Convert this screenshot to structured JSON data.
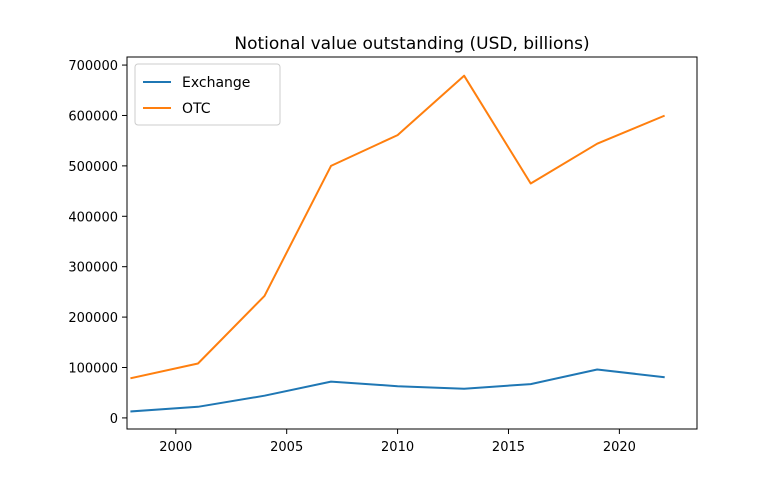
{
  "chart_data": {
    "type": "line",
    "title": "Notional value outstanding (USD, billions)",
    "xlabel": "",
    "ylabel": "",
    "x": [
      1998,
      2001,
      2004,
      2007,
      2010,
      2013,
      2016,
      2019,
      2022
    ],
    "series": [
      {
        "name": "Exchange",
        "color": "#1f77b4",
        "values": [
          13000,
          22000,
          44000,
          72000,
          63000,
          58000,
          67000,
          96000,
          81000
        ]
      },
      {
        "name": "OTC",
        "color": "#ff7f0e",
        "values": [
          79000,
          108000,
          242000,
          500000,
          561000,
          679000,
          465000,
          544000,
          599000
        ]
      }
    ],
    "xlim": [
      1997.8,
      2023.5
    ],
    "ylim": [
      -22000,
      716000
    ],
    "xticks": [
      2000,
      2005,
      2010,
      2015,
      2020
    ],
    "xtick_labels": [
      "2000",
      "2005",
      "2010",
      "2015",
      "2020"
    ],
    "yticks": [
      0,
      100000,
      200000,
      300000,
      400000,
      500000,
      600000,
      700000
    ],
    "ytick_labels": [
      "0",
      "100000",
      "200000",
      "300000",
      "400000",
      "500000",
      "600000",
      "700000"
    ],
    "legend_position": "top-left",
    "grid": false
  }
}
